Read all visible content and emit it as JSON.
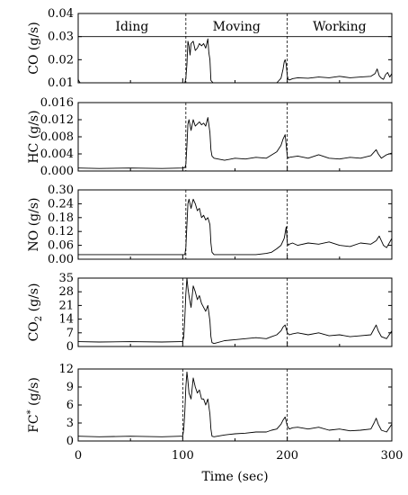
{
  "chart_data": [
    {
      "type": "line",
      "ylabel": "CO (g/s)",
      "ylim": [
        0.01,
        0.04
      ],
      "yticks": [
        "0.01",
        "0.02",
        "0.03",
        "0.04"
      ],
      "xlim": [
        0,
        300
      ],
      "xticks": [
        "0",
        "100",
        "200",
        "300"
      ],
      "phase_labels": [
        "Iding",
        "Moving",
        "Working"
      ],
      "reference_line_y": 0.03,
      "dividers_x": [
        103,
        200
      ],
      "x": [
        0,
        1,
        2,
        10,
        50,
        100,
        102,
        103,
        104,
        105,
        106,
        107,
        108,
        110,
        112,
        114,
        116,
        118,
        120,
        122,
        124,
        125,
        126,
        127,
        129,
        130,
        140,
        150,
        160,
        170,
        180,
        190,
        194,
        196,
        197,
        198,
        199,
        200,
        201,
        202,
        205,
        210,
        220,
        230,
        240,
        250,
        260,
        270,
        280,
        284,
        286,
        288,
        290,
        292,
        294,
        296,
        298,
        300
      ],
      "y": [
        0.0115,
        0.0105,
        0.01,
        0.01,
        0.01,
        0.01,
        0.01,
        0.012,
        0.018,
        0.028,
        0.026,
        0.022,
        0.027,
        0.028,
        0.024,
        0.025,
        0.027,
        0.026,
        0.027,
        0.025,
        0.029,
        0.023,
        0.02,
        0.011,
        0.01,
        0.01,
        0.01,
        0.01,
        0.01,
        0.01,
        0.01,
        0.01,
        0.012,
        0.016,
        0.019,
        0.02,
        0.018,
        0.013,
        0.0115,
        0.0112,
        0.0118,
        0.0122,
        0.012,
        0.0125,
        0.0122,
        0.0128,
        0.0122,
        0.0125,
        0.0128,
        0.014,
        0.016,
        0.013,
        0.012,
        0.0115,
        0.0135,
        0.0145,
        0.0125,
        0.014
      ]
    },
    {
      "type": "line",
      "ylabel": "HC (g/s)",
      "ylim": [
        0,
        0.016
      ],
      "yticks": [
        "0.000",
        "0.004",
        "0.008",
        "0.012",
        "0.016"
      ],
      "xlim": [
        0,
        300
      ],
      "dividers_x": [
        103,
        200
      ],
      "x": [
        0,
        20,
        50,
        80,
        100,
        102,
        103,
        104,
        105,
        106,
        108,
        110,
        112,
        114,
        116,
        118,
        120,
        122,
        124,
        126,
        127,
        128,
        130,
        140,
        150,
        160,
        170,
        180,
        190,
        194,
        196,
        198,
        199,
        200,
        201,
        202,
        210,
        220,
        230,
        240,
        250,
        260,
        270,
        280,
        285,
        287,
        290,
        295,
        300
      ],
      "y": [
        0.0007,
        0.0006,
        0.0007,
        0.0006,
        0.0007,
        0.0008,
        0.0015,
        0.006,
        0.011,
        0.012,
        0.0095,
        0.012,
        0.0105,
        0.011,
        0.0115,
        0.0108,
        0.0112,
        0.0105,
        0.0125,
        0.009,
        0.005,
        0.0035,
        0.003,
        0.0025,
        0.003,
        0.0028,
        0.0032,
        0.003,
        0.0045,
        0.006,
        0.0075,
        0.0085,
        0.006,
        0.0035,
        0.003,
        0.0032,
        0.0035,
        0.003,
        0.0038,
        0.003,
        0.0028,
        0.0032,
        0.003,
        0.0036,
        0.005,
        0.004,
        0.003,
        0.0038,
        0.0042
      ]
    },
    {
      "type": "line",
      "ylabel": "NO (g/s)",
      "ylim": [
        0,
        0.3
      ],
      "yticks": [
        "0.00",
        "0.06",
        "0.12",
        "0.18",
        "0.24",
        "0.30"
      ],
      "xlim": [
        0,
        300
      ],
      "dividers_x": [
        103,
        200
      ],
      "x": [
        0,
        20,
        50,
        80,
        100,
        102,
        103,
        104,
        105,
        106,
        108,
        110,
        112,
        114,
        116,
        118,
        120,
        122,
        124,
        126,
        127,
        128,
        130,
        140,
        150,
        160,
        170,
        180,
        185,
        190,
        194,
        197,
        199,
        200,
        201,
        202,
        205,
        210,
        220,
        230,
        240,
        250,
        260,
        270,
        280,
        285,
        288,
        292,
        295,
        300
      ],
      "y": [
        0.02,
        0.02,
        0.02,
        0.02,
        0.02,
        0.02,
        0.05,
        0.15,
        0.24,
        0.26,
        0.22,
        0.26,
        0.24,
        0.21,
        0.22,
        0.18,
        0.19,
        0.17,
        0.18,
        0.15,
        0.07,
        0.03,
        0.02,
        0.02,
        0.02,
        0.02,
        0.02,
        0.025,
        0.03,
        0.045,
        0.06,
        0.09,
        0.14,
        0.07,
        0.06,
        0.065,
        0.07,
        0.06,
        0.07,
        0.065,
        0.075,
        0.06,
        0.055,
        0.07,
        0.065,
        0.08,
        0.1,
        0.06,
        0.05,
        0.09
      ]
    },
    {
      "type": "line",
      "ylabel": "CO2 (g/s)",
      "ylim": [
        0,
        35
      ],
      "yticks": [
        "0",
        "7",
        "14",
        "21",
        "28",
        "35"
      ],
      "xlim": [
        0,
        300
      ],
      "dividers_x": [
        100,
        200
      ],
      "x": [
        0,
        20,
        50,
        80,
        98,
        100,
        101,
        102,
        103,
        104,
        105,
        106,
        108,
        110,
        112,
        114,
        116,
        118,
        120,
        122,
        124,
        126,
        127,
        128,
        130,
        140,
        150,
        160,
        170,
        180,
        185,
        190,
        194,
        196,
        198,
        200,
        202,
        205,
        210,
        220,
        230,
        240,
        250,
        260,
        270,
        280,
        283,
        285,
        287,
        290,
        295,
        300
      ],
      "y": [
        2.5,
        2.3,
        2.5,
        2.3,
        2.5,
        2.5,
        5,
        15,
        27,
        35,
        30,
        26,
        20,
        31,
        28,
        24,
        26,
        22,
        20,
        18,
        21,
        13,
        5,
        2,
        1.5,
        3,
        3.5,
        4,
        4.5,
        4,
        5,
        6,
        8,
        10,
        11,
        7,
        6,
        6.5,
        7,
        6,
        7,
        5.5,
        6,
        5,
        5.5,
        6,
        9,
        11,
        8,
        5,
        4,
        8
      ]
    },
    {
      "type": "line",
      "ylabel": "FC* (g/s)",
      "ylim": [
        0,
        12
      ],
      "yticks": [
        "0",
        "3",
        "6",
        "9",
        "12"
      ],
      "xlim": [
        0,
        300
      ],
      "xticks": [
        "0",
        "100",
        "200",
        "300"
      ],
      "xlabel": "Time (sec)",
      "dividers_x": [
        100,
        200
      ],
      "x": [
        0,
        20,
        50,
        80,
        98,
        100,
        101,
        102,
        103,
        104,
        105,
        106,
        108,
        110,
        112,
        114,
        116,
        118,
        120,
        122,
        124,
        126,
        127,
        128,
        130,
        140,
        150,
        160,
        170,
        180,
        185,
        190,
        194,
        196,
        198,
        200,
        202,
        205,
        210,
        220,
        230,
        240,
        250,
        260,
        270,
        280,
        283,
        285,
        287,
        290,
        295,
        300
      ],
      "y": [
        0.8,
        0.7,
        0.8,
        0.7,
        0.8,
        0.8,
        2,
        5,
        9,
        11.5,
        10,
        8,
        7,
        10.5,
        9,
        8,
        8.5,
        7,
        7,
        6,
        7,
        4.5,
        2,
        0.8,
        0.7,
        1,
        1.2,
        1.3,
        1.5,
        1.5,
        1.8,
        2,
        2.8,
        3.5,
        4,
        2.5,
        2,
        2.2,
        2.3,
        2,
        2.3,
        1.8,
        2,
        1.7,
        1.8,
        2,
        3,
        3.8,
        2.8,
        1.8,
        1.5,
        2.8
      ]
    }
  ]
}
